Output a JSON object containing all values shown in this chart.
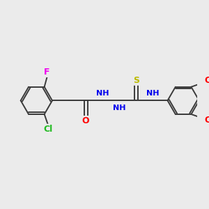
{
  "background_color": "#ebebeb",
  "bond_color": "#3a3a3a",
  "atom_colors": {
    "F": "#ee00ee",
    "Cl": "#22bb22",
    "O": "#ff0000",
    "N": "#0000ee",
    "S": "#bbbb00",
    "C": "#000000",
    "H": "#444444"
  },
  "figsize": [
    3.0,
    3.0
  ],
  "dpi": 100,
  "xlim": [
    0,
    10
  ],
  "ylim": [
    0,
    10
  ]
}
